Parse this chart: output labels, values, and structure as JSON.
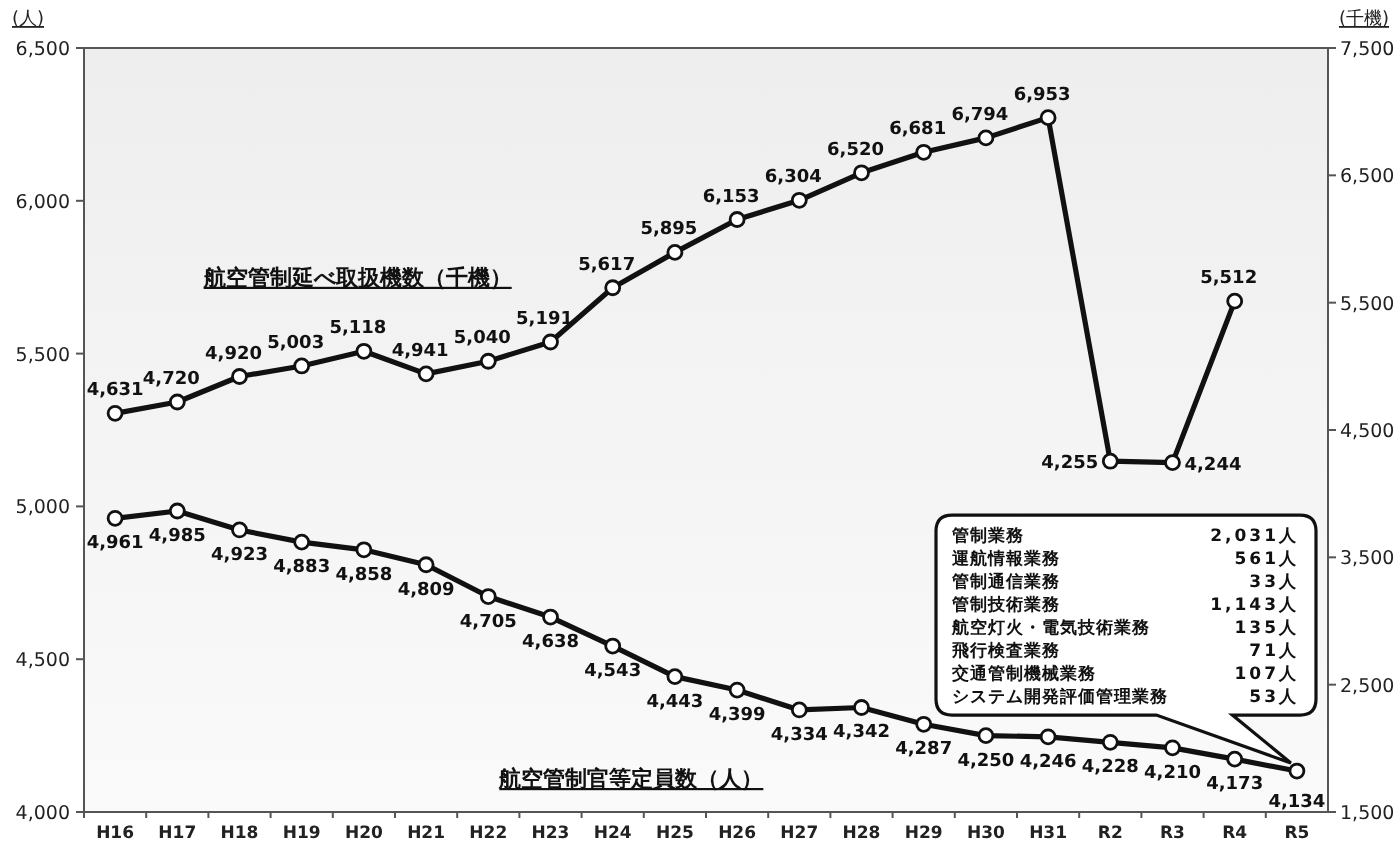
{
  "chart_data": {
    "type": "line",
    "categories": [
      "H16",
      "H17",
      "H18",
      "H19",
      "H20",
      "H21",
      "H22",
      "H23",
      "H24",
      "H25",
      "H26",
      "H27",
      "H28",
      "H29",
      "H30",
      "H31",
      "R2",
      "R3",
      "R4",
      "R5"
    ],
    "series": [
      {
        "name": "航空管制延べ取扱機数（千機）",
        "color": "#111111",
        "axis": "y2",
        "values": [
          4631,
          4720,
          4920,
          5003,
          5118,
          4941,
          5040,
          5191,
          5617,
          5895,
          6153,
          6304,
          6520,
          6681,
          6794,
          6953,
          4255,
          4244,
          5512,
          null
        ],
        "value_labels": [
          "4,631",
          "4,720",
          "4,920",
          "5,003",
          "5,118",
          "4,941",
          "5,040",
          "5,191",
          "5,617",
          "5,895",
          "6,153",
          "6,304",
          "6,520",
          "6,681",
          "6,794",
          "6,953",
          "4,255",
          "4,244",
          "5,512",
          null
        ]
      },
      {
        "name": "航空管制官等定員数（人）",
        "color": "#111111",
        "values": [
          4961,
          4985,
          4923,
          4883,
          4858,
          4809,
          4705,
          4638,
          4543,
          4443,
          4399,
          4334,
          4342,
          4287,
          4250,
          4246,
          4228,
          4210,
          4173,
          4134
        ],
        "value_labels": [
          "4,961",
          "4,985",
          "4,923",
          "4,883",
          "4,858",
          "4,809",
          "4,705",
          "4,638",
          "4,543",
          "4,443",
          "4,399",
          "4,334",
          "4,342",
          "4,287",
          "4,250",
          "4,246",
          "4,228",
          "4,210",
          "4,173",
          "4,134"
        ]
      }
    ],
    "ylabel": "(人)",
    "y2label": "(千機)",
    "ylim": [
      4000,
      6500
    ],
    "yticks": [
      {
        "value": 4000,
        "label": "4,000"
      },
      {
        "value": 4500,
        "label": "4,500"
      },
      {
        "value": 5000,
        "label": "5,000"
      },
      {
        "value": 5500,
        "label": "5,500"
      },
      {
        "value": 6000,
        "label": "6,000"
      },
      {
        "value": 6500,
        "label": "6,500"
      }
    ],
    "y2lim": [
      1500,
      7500
    ],
    "y2ticks": [
      {
        "value": 1500,
        "label": "1,500"
      },
      {
        "value": 2500,
        "label": "2,500"
      },
      {
        "value": 3500,
        "label": "3,500"
      },
      {
        "value": 4500,
        "label": "4,500"
      },
      {
        "value": 5500,
        "label": "5,500"
      },
      {
        "value": 6500,
        "label": "6,500"
      },
      {
        "value": 7500,
        "label": "7,500"
      }
    ],
    "marker": "circle",
    "line_style": "solid",
    "grid": false,
    "annotations": [
      "管制業務",
      "2,031人",
      "運航情報業務",
      "561人",
      "管制通信業務",
      "33人",
      "管制技術業務",
      "1,143人",
      "航空灯火・電気技術業務",
      "135人",
      "飛行検査業務",
      "71人",
      "交通管制機械業務",
      "107人",
      "システム開発評価管理業務",
      "53人"
    ]
  }
}
